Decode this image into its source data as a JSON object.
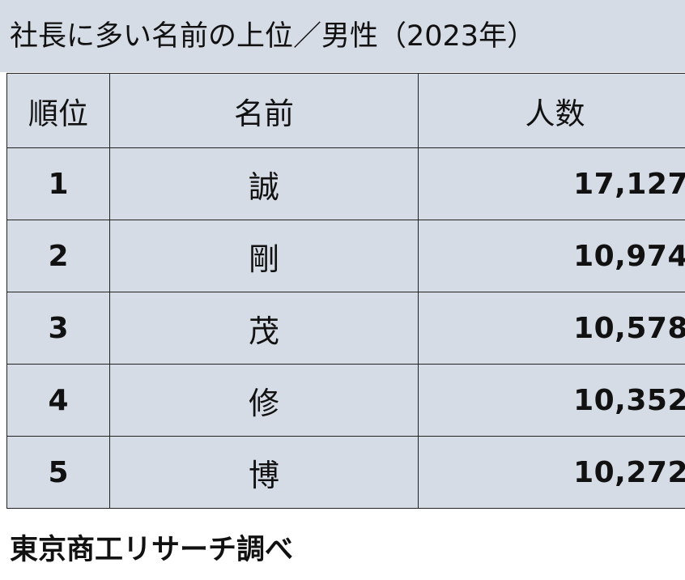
{
  "title": "社長に多い名前の上位／男性（2023年）",
  "table": {
    "headers": {
      "rank": "順位",
      "name": "名前",
      "count": "人数"
    },
    "rows": [
      {
        "rank": "1",
        "name": "誠",
        "count": "17,127"
      },
      {
        "rank": "2",
        "name": "剛",
        "count": "10,974"
      },
      {
        "rank": "3",
        "name": "茂",
        "count": "10,578"
      },
      {
        "rank": "4",
        "name": "修",
        "count": "10,352"
      },
      {
        "rank": "5",
        "name": "博",
        "count": "10,272"
      }
    ]
  },
  "source": "東京商工リサーチ調べ",
  "colors": {
    "table_background": "#d6dce5",
    "border": "#222222",
    "text": "#111111"
  }
}
